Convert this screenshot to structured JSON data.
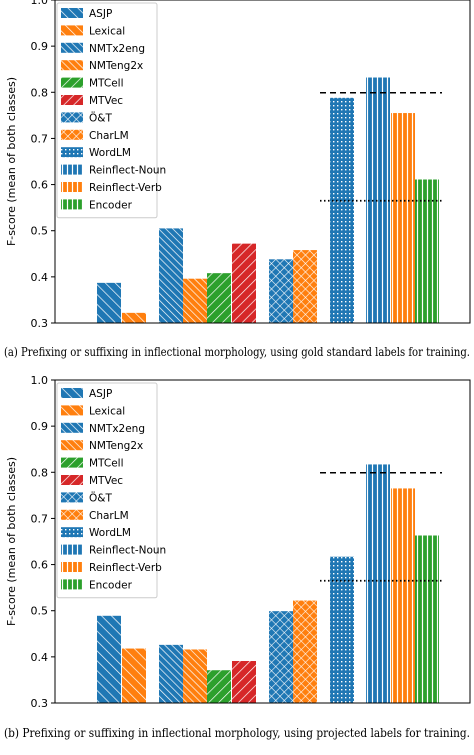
{
  "colors": {
    "blue": "#1f77b4",
    "orange": "#ff7f0e",
    "green": "#2ca02c",
    "red": "#d62728"
  },
  "legend_entries": [
    {
      "label": "ASJP",
      "color": "blue",
      "pattern": "hatch-back"
    },
    {
      "label": "Lexical",
      "color": "orange",
      "pattern": "hatch-back"
    },
    {
      "label": "NMTx2eng",
      "color": "blue",
      "pattern": "hatch-back-dense"
    },
    {
      "label": "NMTeng2x",
      "color": "orange",
      "pattern": "hatch-back-dense"
    },
    {
      "label": "MTCell",
      "color": "green",
      "pattern": "hatch-fwd"
    },
    {
      "label": "MTVec",
      "color": "red",
      "pattern": "hatch-fwd"
    },
    {
      "label": "Ö&T",
      "color": "blue",
      "pattern": "cross"
    },
    {
      "label": "CharLM",
      "color": "orange",
      "pattern": "cross"
    },
    {
      "label": "WordLM",
      "color": "blue",
      "pattern": "dots"
    },
    {
      "label": "Reinflect-Noun",
      "color": "blue",
      "pattern": "vert"
    },
    {
      "label": "Reinflect-Verb",
      "color": "orange",
      "pattern": "vert"
    },
    {
      "label": "Encoder",
      "color": "green",
      "pattern": "vert"
    }
  ],
  "chart_data": [
    {
      "type": "bar",
      "ylabel": "F-score (mean of both classes)",
      "ylim": [
        0.3,
        1.0
      ],
      "yticks": [
        "0.3",
        "0.4",
        "0.5",
        "0.6",
        "0.7",
        "0.8",
        "0.9",
        "1.0"
      ],
      "series": [
        {
          "name": "ASJP",
          "value": 0.387
        },
        {
          "name": "Lexical",
          "value": 0.322
        },
        {
          "name": "NMTx2eng",
          "value": 0.505
        },
        {
          "name": "NMTeng2x",
          "value": 0.396
        },
        {
          "name": "MTCell",
          "value": 0.408
        },
        {
          "name": "MTVec",
          "value": 0.472
        },
        {
          "name": "Ö&T",
          "value": 0.438
        },
        {
          "name": "CharLM",
          "value": 0.458
        },
        {
          "name": "WordLM",
          "value": 0.788
        },
        {
          "name": "Reinflect-Noun",
          "value": 0.832
        },
        {
          "name": "Reinflect-Verb",
          "value": 0.755
        },
        {
          "name": "Encoder",
          "value": 0.611
        }
      ],
      "reference_lines": [
        {
          "style": "dashed",
          "value": 0.799
        },
        {
          "style": "dotted",
          "value": 0.565
        }
      ],
      "legend_position": "upper-left",
      "grid": false,
      "caption": "(a) Prefixing or suffixing in inflectional morphology, using gold standard labels for training."
    },
    {
      "type": "bar",
      "ylabel": "F-score (mean of both classes)",
      "ylim": [
        0.3,
        1.0
      ],
      "yticks": [
        "0.3",
        "0.4",
        "0.5",
        "0.6",
        "0.7",
        "0.8",
        "0.9",
        "1.0"
      ],
      "series": [
        {
          "name": "ASJP",
          "value": 0.489
        },
        {
          "name": "Lexical",
          "value": 0.418
        },
        {
          "name": "NMTx2eng",
          "value": 0.426
        },
        {
          "name": "NMTeng2x",
          "value": 0.416
        },
        {
          "name": "MTCell",
          "value": 0.371
        },
        {
          "name": "MTVec",
          "value": 0.391
        },
        {
          "name": "Ö&T",
          "value": 0.499
        },
        {
          "name": "CharLM",
          "value": 0.522
        },
        {
          "name": "WordLM",
          "value": 0.617
        },
        {
          "name": "Reinflect-Noun",
          "value": 0.817
        },
        {
          "name": "Reinflect-Verb",
          "value": 0.765
        },
        {
          "name": "Encoder",
          "value": 0.663
        }
      ],
      "reference_lines": [
        {
          "style": "dashed",
          "value": 0.799
        },
        {
          "style": "dotted",
          "value": 0.565
        }
      ],
      "legend_position": "upper-left",
      "grid": false,
      "caption": "(b) Prefixing or suffixing in inflectional morphology, using projected labels for training."
    }
  ]
}
